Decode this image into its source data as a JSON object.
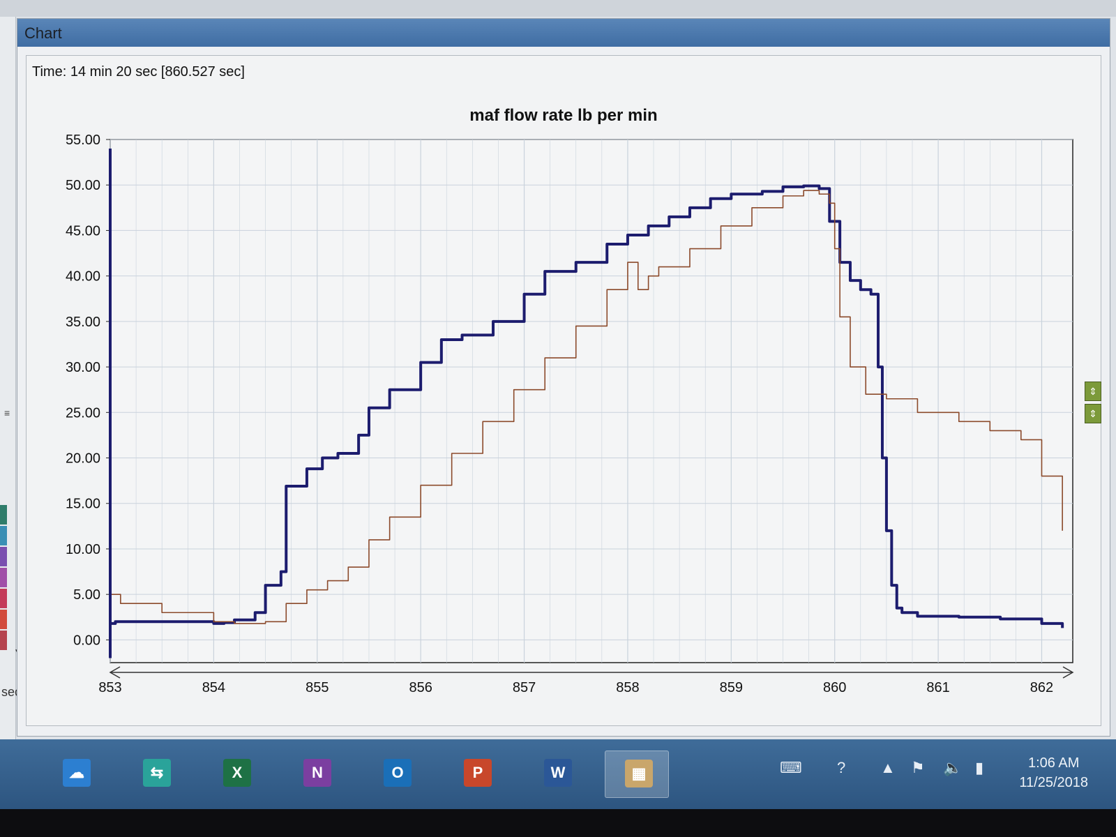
{
  "window": {
    "title": "Chart"
  },
  "readout": {
    "time_text": "Time: 14 min 20 sec [860.527 sec]"
  },
  "left_panel": {
    "unit_label": "sec"
  },
  "colors": {
    "series_thick": "#1c1c6e",
    "series_thin": "#8b4a2b",
    "grid": "#c9d2dc",
    "plot_bg": "#f4f5f6"
  },
  "side_buttons": [
    "move-down-up-icon",
    "move-up-down-icon"
  ],
  "taskbar": {
    "apps": [
      {
        "name": "onedrive",
        "glyph": "☁",
        "color": "#2c7fd1"
      },
      {
        "name": "app-transfer",
        "glyph": "⇆",
        "color": "#2aa39a"
      },
      {
        "name": "excel",
        "glyph": "X",
        "color": "#1e7145"
      },
      {
        "name": "onenote",
        "glyph": "N",
        "color": "#7b3fa0"
      },
      {
        "name": "outlook",
        "glyph": "O",
        "color": "#1a6fb8"
      },
      {
        "name": "powerpoint",
        "glyph": "P",
        "color": "#c8472b"
      },
      {
        "name": "word",
        "glyph": "W",
        "color": "#2b5797"
      },
      {
        "name": "chart-app",
        "glyph": "▦",
        "color": "#c9a66b"
      }
    ],
    "time": "1:06 AM",
    "date": "11/25/2018"
  },
  "chart_data": {
    "type": "line",
    "title": "maf flow rate lb per min",
    "xlabel": "sec",
    "ylabel": "",
    "xlim": [
      853,
      862.3
    ],
    "ylim": [
      -2.5,
      55
    ],
    "x_ticks": [
      853,
      854,
      855,
      856,
      857,
      858,
      859,
      860,
      861,
      862
    ],
    "y_ticks": [
      "0.00",
      "5.00",
      "10.00",
      "15.00",
      "20.00",
      "25.00",
      "30.00",
      "35.00",
      "40.00",
      "45.00",
      "50.00",
      "55.00"
    ],
    "grid": true,
    "legend": "none",
    "series": [
      {
        "style": "thick",
        "x": [
          853.0,
          853.05,
          853.2,
          853.6,
          854.0,
          854.1,
          854.2,
          854.4,
          854.5,
          854.65,
          854.7,
          854.9,
          855.05,
          855.2,
          855.4,
          855.5,
          855.7,
          856.0,
          856.2,
          856.4,
          856.7,
          857.0,
          857.2,
          857.5,
          857.8,
          858.0,
          858.2,
          858.4,
          858.6,
          858.8,
          859.0,
          859.3,
          859.5,
          859.7,
          859.85,
          859.95,
          860.05,
          860.15,
          860.25,
          860.35,
          860.42,
          860.46,
          860.5,
          860.55,
          860.6,
          860.65,
          860.8,
          861.2,
          861.6,
          862.0,
          862.2
        ],
        "y": [
          1.8,
          2.0,
          2.0,
          2.0,
          1.8,
          1.9,
          2.2,
          3.0,
          6.0,
          7.5,
          16.9,
          18.8,
          20.0,
          20.5,
          22.5,
          25.5,
          27.5,
          30.5,
          33.0,
          33.5,
          35.0,
          38.0,
          40.5,
          41.5,
          43.5,
          44.5,
          45.5,
          46.5,
          47.5,
          48.5,
          49.0,
          49.3,
          49.8,
          49.9,
          49.6,
          46.0,
          41.5,
          39.5,
          38.5,
          38.0,
          30.0,
          20.0,
          12.0,
          6.0,
          3.5,
          3.0,
          2.6,
          2.5,
          2.3,
          1.8,
          1.3
        ]
      },
      {
        "style": "thin",
        "x": [
          853.0,
          853.1,
          853.5,
          854.0,
          854.2,
          854.4,
          854.5,
          854.7,
          854.9,
          855.1,
          855.3,
          855.5,
          855.7,
          856.0,
          856.3,
          856.6,
          856.9,
          857.2,
          857.5,
          857.8,
          858.0,
          858.1,
          858.2,
          858.3,
          858.6,
          858.9,
          859.2,
          859.5,
          859.7,
          859.85,
          859.95,
          860.0,
          860.05,
          860.15,
          860.3,
          860.5,
          860.8,
          861.2,
          861.5,
          861.8,
          862.0,
          862.2
        ],
        "y": [
          5.0,
          4.0,
          3.0,
          2.0,
          1.8,
          1.8,
          2.0,
          4.0,
          5.5,
          6.5,
          8.0,
          11.0,
          13.5,
          17.0,
          20.5,
          24.0,
          27.5,
          31.0,
          34.5,
          38.5,
          41.5,
          38.5,
          40.0,
          41.0,
          43.0,
          45.5,
          47.5,
          48.8,
          49.4,
          49.0,
          48.0,
          43.0,
          35.5,
          30.0,
          27.0,
          26.5,
          25.0,
          24.0,
          23.0,
          22.0,
          18.0,
          12.0
        ]
      }
    ]
  }
}
